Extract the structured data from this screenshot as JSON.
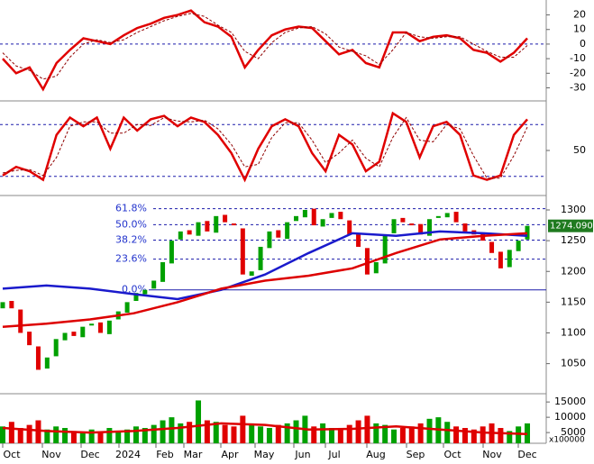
{
  "chart_data": [
    {
      "type": "line",
      "ylim": [
        -36.5,
        29
      ],
      "yticks": [
        20,
        10,
        0,
        -10,
        -20,
        -30
      ],
      "levels": [
        0
      ],
      "level_color": "#1a1aaa",
      "series": [
        {
          "color": "#e00000",
          "values": [
            -10,
            -20,
            -16,
            -31,
            -13,
            -4,
            4,
            2,
            0,
            6,
            11,
            14,
            18,
            20,
            23,
            15,
            12,
            5,
            -16,
            -4,
            6,
            10,
            12,
            11,
            2,
            -7,
            -4,
            -13,
            -16,
            8,
            8,
            2,
            5,
            6,
            4,
            -4,
            -6,
            -12,
            -6,
            4
          ]
        },
        {
          "color": "#900000",
          "dash": true,
          "values": [
            -6,
            -15,
            -18,
            -24,
            -22,
            -9,
            0,
            3,
            1,
            3,
            8,
            12,
            16,
            19,
            21,
            19,
            13,
            8,
            -5,
            -10,
            1,
            8,
            11,
            12,
            7,
            -2,
            -5,
            -8,
            -14,
            -4,
            8,
            5,
            4,
            5,
            5,
            0,
            -5,
            -9,
            -9,
            -1
          ]
        }
      ]
    },
    {
      "type": "line",
      "ylim": [
        0,
        100
      ],
      "yticks": [
        50
      ],
      "levels": [
        20,
        80
      ],
      "level_color": "#1a1aaa",
      "series": [
        {
          "color": "#e00000",
          "values": [
            21,
            31,
            26,
            16,
            68,
            88,
            78,
            88,
            52,
            88,
            73,
            86,
            90,
            78,
            88,
            83,
            68,
            47,
            16,
            52,
            78,
            86,
            78,
            47,
            26,
            68,
            57,
            26,
            37,
            93,
            83,
            42,
            78,
            83,
            68,
            21,
            16,
            21,
            68,
            86
          ]
        },
        {
          "color": "#900000",
          "dash": true,
          "values": [
            24,
            27,
            28,
            21,
            42,
            78,
            83,
            83,
            70,
            70,
            80,
            79,
            88,
            84,
            83,
            85,
            75,
            57,
            31,
            34,
            65,
            82,
            82,
            62,
            36,
            47,
            62,
            41,
            31,
            65,
            88,
            62,
            60,
            80,
            75,
            44,
            18,
            18,
            44,
            77
          ]
        }
      ]
    },
    {
      "type": "candlestick",
      "ylim": [
        1004,
        1322
      ],
      "yticks": [
        1300,
        1250,
        1200,
        1150,
        1100,
        1050
      ],
      "up_color": "#00a000",
      "down_color": "#e00000",
      "open": [
        1140,
        1152,
        1138,
        1102,
        1078,
        1042,
        1062,
        1088,
        1102,
        1093,
        1112,
        1117,
        1098,
        1122,
        1133,
        1152,
        1163,
        1172,
        1183,
        1213,
        1252,
        1267,
        1258,
        1282,
        1263,
        1292,
        1278,
        1270,
        1193,
        1202,
        1238,
        1267,
        1253,
        1282,
        1288,
        1302,
        1273,
        1287,
        1297,
        1283,
        1262,
        1238,
        1197,
        1213,
        1262,
        1287,
        1278,
        1277,
        1258,
        1287,
        1288,
        1297,
        1278,
        1267,
        1262,
        1248,
        1232,
        1207,
        1233,
        1252
      ],
      "close": [
        1150,
        1140,
        1100,
        1080,
        1040,
        1060,
        1090,
        1100,
        1095,
        1110,
        1115,
        1100,
        1120,
        1135,
        1150,
        1165,
        1170,
        1185,
        1215,
        1250,
        1265,
        1260,
        1280,
        1265,
        1290,
        1280,
        1275,
        1195,
        1200,
        1240,
        1265,
        1255,
        1280,
        1290,
        1300,
        1275,
        1285,
        1295,
        1285,
        1260,
        1240,
        1195,
        1215,
        1260,
        1285,
        1280,
        1275,
        1260,
        1285,
        1290,
        1295,
        1280,
        1265,
        1260,
        1250,
        1230,
        1205,
        1235,
        1250,
        1274.09
      ],
      "series": [
        {
          "color": "#1a1acc",
          "values": [
            1172,
            1177,
            1172,
            1163,
            1155,
            1170,
            1195,
            1230,
            1262,
            1258,
            1265,
            1262,
            1258
          ]
        },
        {
          "color": "#dd0000",
          "values": [
            1110,
            1115,
            1122,
            1132,
            1150,
            1172,
            1185,
            1193,
            1205,
            1230,
            1252,
            1258,
            1262
          ]
        }
      ],
      "fib_levels": [
        {
          "label": "61.8%",
          "value": 1302
        },
        {
          "label": "50.0%",
          "value": 1276
        },
        {
          "label": "38.2%",
          "value": 1251
        },
        {
          "label": "23.6%",
          "value": 1220
        },
        {
          "label": "0.0%",
          "value": 1170
        }
      ],
      "last_price": {
        "value": 1274.09,
        "label": "1274.090"
      }
    },
    {
      "type": "bar",
      "ylim": [
        1500,
        17400
      ],
      "yticks": [
        15000,
        10000,
        5000
      ],
      "unit_label": "x100000",
      "values": [
        7000,
        8500,
        6500,
        7500,
        9000,
        6000,
        7000,
        6500,
        5500,
        5000,
        6000,
        5000,
        6500,
        5500,
        6000,
        7000,
        6500,
        7500,
        9000,
        10000,
        8000,
        8500,
        15500,
        9000,
        8500,
        7500,
        7000,
        10500,
        8000,
        7000,
        6500,
        7500,
        8000,
        9000,
        10500,
        7000,
        8000,
        6500,
        6000,
        7500,
        9000,
        10500,
        8000,
        7500,
        6000,
        6500,
        7000,
        8000,
        9500,
        10000,
        8500,
        7000,
        6500,
        6000,
        7000,
        8000,
        6500,
        5500,
        7000,
        8000
      ],
      "ma": {
        "color": "#dd0000",
        "values": [
          6500,
          5500,
          5000,
          5500,
          6500,
          8000,
          7500,
          6000,
          6200,
          7000,
          6000,
          5000,
          4500
        ]
      },
      "x_labels": [
        "Oct",
        "Nov",
        "Dec",
        "2024",
        "Feb",
        "Mar",
        "Apr",
        "May",
        "Jun",
        "Jul",
        "Aug",
        "Sep",
        "Oct",
        "Nov",
        "Dec"
      ]
    }
  ]
}
